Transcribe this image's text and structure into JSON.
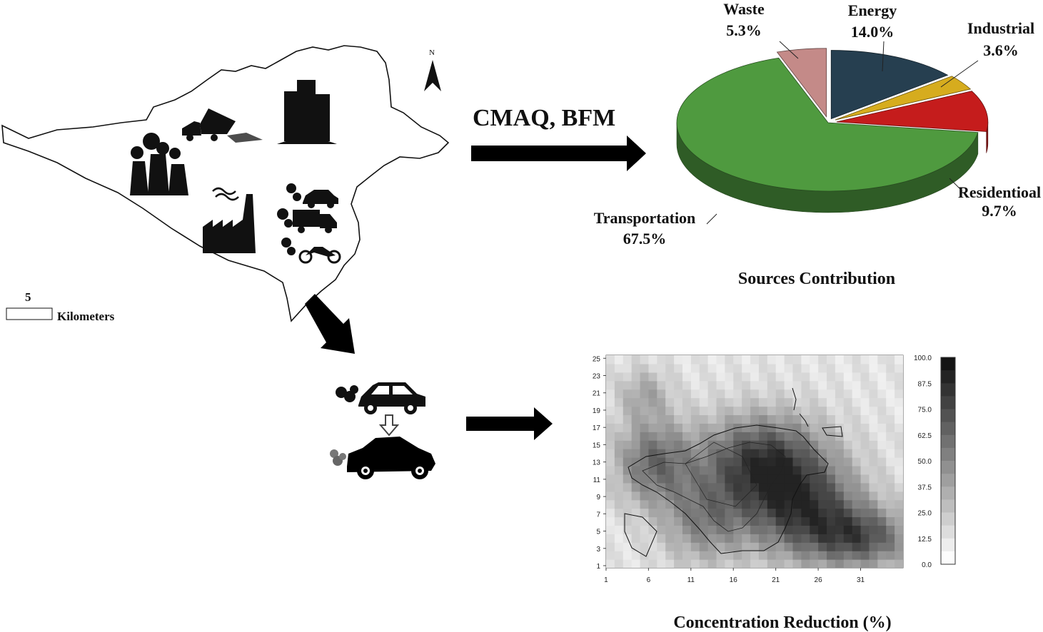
{
  "map": {
    "north_label": "N",
    "scale_value": "5",
    "scale_unit": "Kilometers"
  },
  "model_label": "CMAQ, BFM",
  "pie": {
    "title": "Sources Contribution",
    "slices": [
      {
        "name": "Transportation",
        "percent_label": "67.5%",
        "value": 67.5,
        "color": "#4f9a3f"
      },
      {
        "name": "Waste",
        "percent_label": "5.3%",
        "value": 5.3,
        "color": "#c48a88"
      },
      {
        "name": "Energy",
        "percent_label": "14.0%",
        "value": 14.0,
        "color": "#263f50"
      },
      {
        "name": "Industrial",
        "percent_label": "3.6%",
        "value": 3.6,
        "color": "#d6ac1e"
      },
      {
        "name": "Residentioal",
        "percent_label": "9.7%",
        "value": 9.7,
        "color": "#c51c1c"
      }
    ]
  },
  "heatmap": {
    "title": "Concentration Reduction (%)",
    "x_ticks": [
      "1",
      "6",
      "11",
      "16",
      "21",
      "26",
      "31"
    ],
    "y_ticks": [
      "1",
      "3",
      "5",
      "7",
      "9",
      "11",
      "13",
      "15",
      "17",
      "19",
      "21",
      "23",
      "25"
    ],
    "colorbar_ticks": [
      "100.0",
      "87.5",
      "75.0",
      "62.5",
      "50.0",
      "37.5",
      "25.0",
      "12.5",
      "0.0"
    ],
    "colorbar_range": [
      0,
      100
    ]
  }
}
